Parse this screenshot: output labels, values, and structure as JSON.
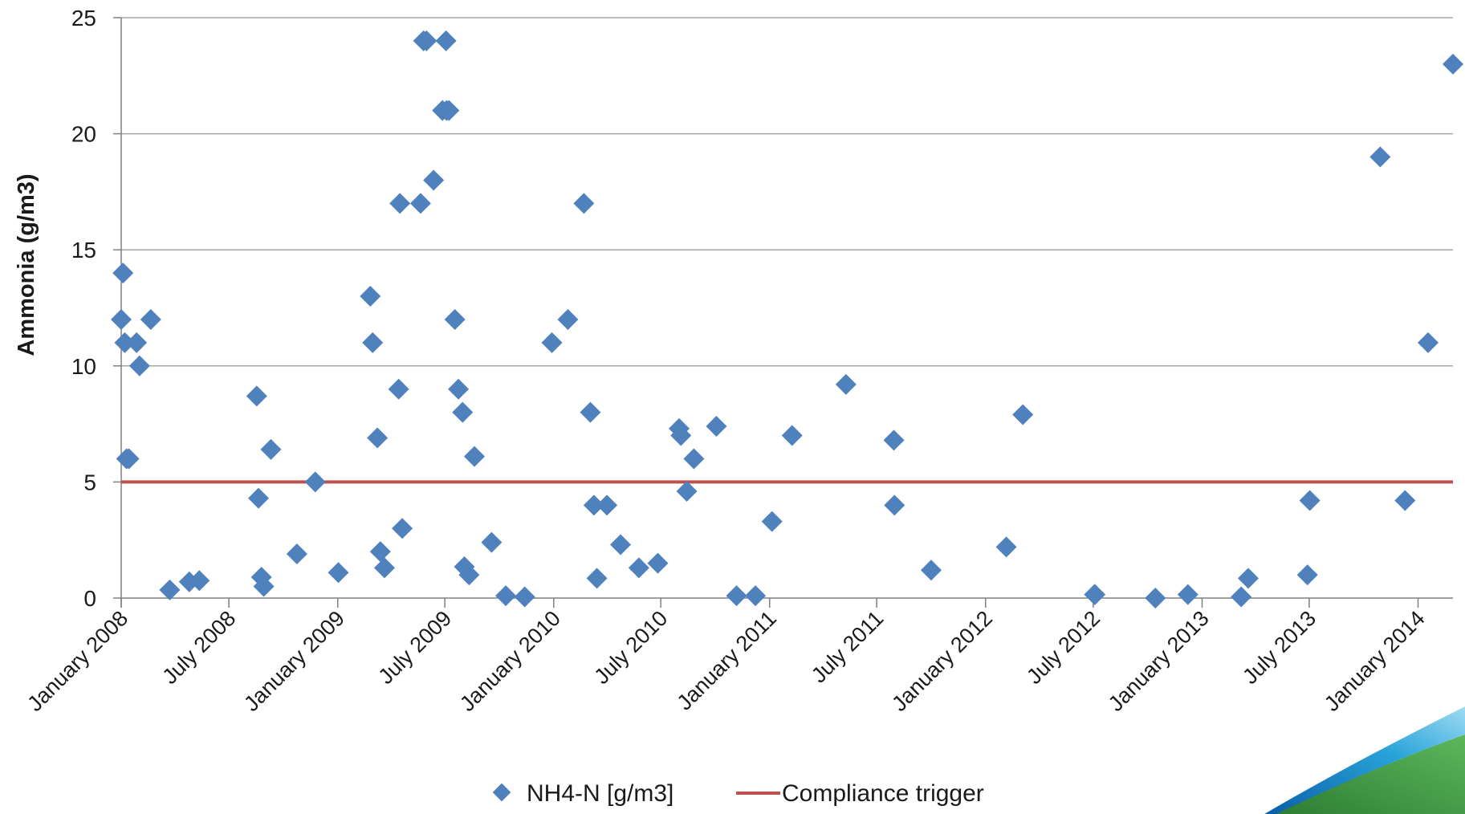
{
  "chart_data": {
    "type": "scatter",
    "title": "",
    "xlabel": "",
    "ylabel": "Ammonia (g/m3)",
    "x_axis_type": "date",
    "xlim": [
      "2008-01-01",
      "2014-03-01"
    ],
    "ylim": [
      0,
      25
    ],
    "y_ticks": [
      0,
      5,
      10,
      15,
      20,
      25
    ],
    "x_tick_labels": [
      "January 2008",
      "July 2008",
      "January 2009",
      "July 2009",
      "January 2010",
      "July 2010",
      "January 2011",
      "July 2011",
      "January 2012",
      "July 2012",
      "January 2013",
      "July 2013",
      "January 2014"
    ],
    "x_ticks": [
      "2008-01-01",
      "2008-07-01",
      "2009-01-01",
      "2009-07-01",
      "2010-01-01",
      "2010-07-01",
      "2011-01-01",
      "2011-07-01",
      "2012-01-01",
      "2012-07-01",
      "2013-01-01",
      "2013-07-01",
      "2014-01-01"
    ],
    "grid": "horizontal",
    "legend": "bottom",
    "series": [
      {
        "name": "NH4-N [g/m3]",
        "type": "scatter",
        "marker": "diamond",
        "color": "#4f81bd",
        "points": [
          [
            "2008-01-01",
            12
          ],
          [
            "2008-01-04",
            14
          ],
          [
            "2008-01-07",
            11
          ],
          [
            "2008-01-10",
            6
          ],
          [
            "2008-01-14",
            6
          ],
          [
            "2008-01-27",
            11
          ],
          [
            "2008-02-01",
            10
          ],
          [
            "2008-02-20",
            12
          ],
          [
            "2008-03-23",
            0.35
          ],
          [
            "2008-04-25",
            0.7
          ],
          [
            "2008-05-12",
            0.75
          ],
          [
            "2008-08-17",
            8.7
          ],
          [
            "2008-08-20",
            4.3
          ],
          [
            "2008-08-25",
            0.9
          ],
          [
            "2008-08-29",
            0.5
          ],
          [
            "2008-09-10",
            6.4
          ],
          [
            "2008-10-24",
            1.9
          ],
          [
            "2008-11-24",
            5
          ],
          [
            "2009-01-02",
            1.1
          ],
          [
            "2009-02-25",
            13
          ],
          [
            "2009-03-01",
            11
          ],
          [
            "2009-03-09",
            6.9
          ],
          [
            "2009-03-14",
            2
          ],
          [
            "2009-03-21",
            1.3
          ],
          [
            "2009-04-14",
            9
          ],
          [
            "2009-04-16",
            17
          ],
          [
            "2009-04-20",
            3
          ],
          [
            "2009-05-21",
            17
          ],
          [
            "2009-05-26",
            24
          ],
          [
            "2009-05-31",
            24
          ],
          [
            "2009-06-12",
            18
          ],
          [
            "2009-06-27",
            21
          ],
          [
            "2009-07-04",
            21
          ],
          [
            "2009-07-08",
            21
          ],
          [
            "2009-07-03",
            24
          ],
          [
            "2009-07-18",
            12
          ],
          [
            "2009-07-24",
            9
          ],
          [
            "2009-07-31",
            8
          ],
          [
            "2009-08-03",
            1.35
          ],
          [
            "2009-08-11",
            1
          ],
          [
            "2009-08-20",
            6.1
          ],
          [
            "2009-09-18",
            2.4
          ],
          [
            "2009-10-12",
            0.1
          ],
          [
            "2009-11-13",
            0.05
          ],
          [
            "2009-12-29",
            11
          ],
          [
            "2010-01-25",
            12
          ],
          [
            "2010-02-21",
            17
          ],
          [
            "2010-03-04",
            8
          ],
          [
            "2010-03-10",
            4
          ],
          [
            "2010-03-15",
            0.85
          ],
          [
            "2010-04-01",
            4
          ],
          [
            "2010-04-24",
            2.3
          ],
          [
            "2010-05-25",
            1.3
          ],
          [
            "2010-06-26",
            1.5
          ],
          [
            "2010-08-01",
            7.3
          ],
          [
            "2010-08-04",
            7
          ],
          [
            "2010-08-14",
            4.6
          ],
          [
            "2010-08-26",
            6
          ],
          [
            "2010-10-03",
            7.4
          ],
          [
            "2010-11-06",
            0.1
          ],
          [
            "2010-12-08",
            0.1
          ],
          [
            "2011-01-05",
            3.3
          ],
          [
            "2011-02-08",
            7
          ],
          [
            "2011-05-10",
            9.2
          ],
          [
            "2011-07-30",
            6.8
          ],
          [
            "2011-07-31",
            4
          ],
          [
            "2011-10-01",
            1.2
          ],
          [
            "2012-02-05",
            2.2
          ],
          [
            "2012-03-04",
            7.9
          ],
          [
            "2012-07-03",
            0.15
          ],
          [
            "2012-07-04",
            0.15
          ],
          [
            "2012-10-14",
            0
          ],
          [
            "2012-12-08",
            0.15
          ],
          [
            "2013-03-08",
            0.05
          ],
          [
            "2013-03-20",
            0.85
          ],
          [
            "2013-06-28",
            1
          ],
          [
            "2013-07-02",
            4.2
          ],
          [
            "2013-10-29",
            19
          ],
          [
            "2013-12-10",
            4.2
          ],
          [
            "2014-01-18",
            11
          ],
          [
            "2014-03-01",
            23
          ]
        ]
      },
      {
        "name": "Compliance trigger",
        "type": "line",
        "color": "#c0504d",
        "points": [
          [
            "2008-01-01",
            5
          ],
          [
            "2014-03-01",
            5
          ]
        ]
      }
    ]
  },
  "colors": {
    "marker": "#4f81bd",
    "compliance_line": "#c0504d",
    "gridline": "#a6a6a6",
    "axis": "#808080",
    "decor_green": "#3e8e3e",
    "decor_blue": "#1e82c8"
  }
}
